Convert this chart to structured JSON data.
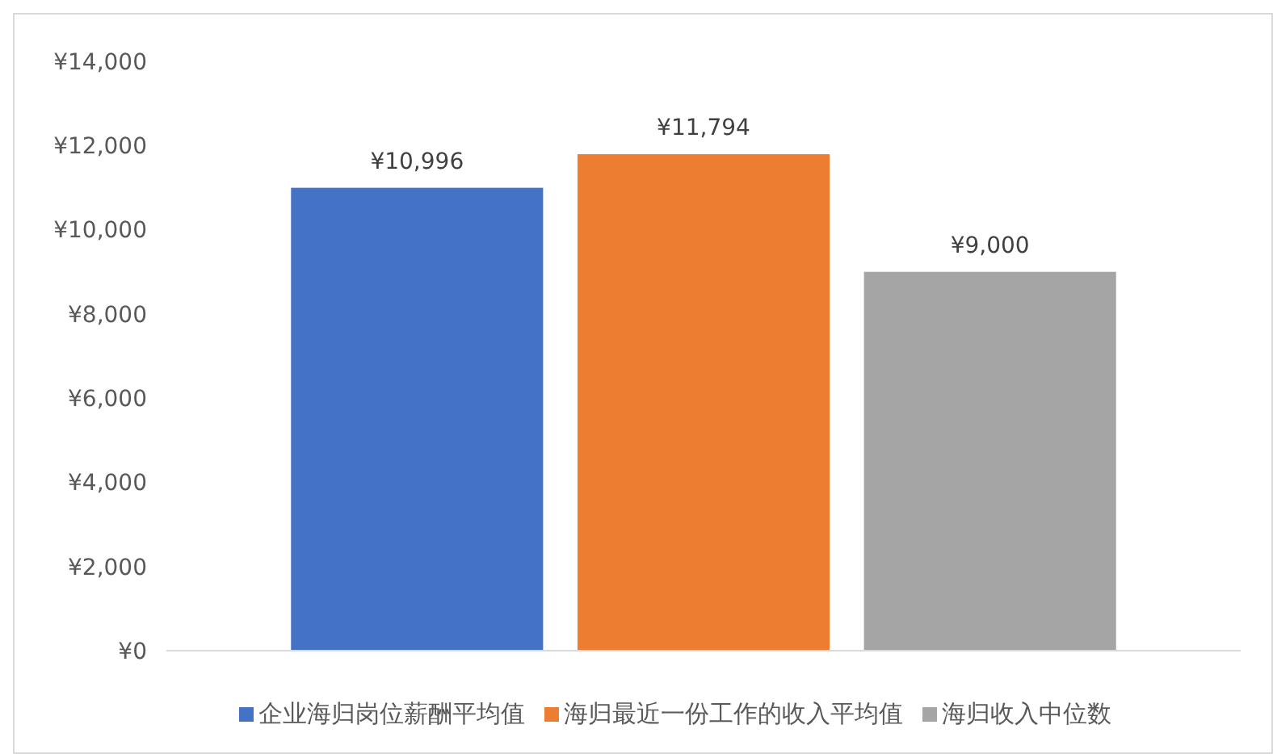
{
  "chart_data": {
    "type": "bar",
    "categories": [
      null
    ],
    "series": [
      {
        "name": "企业海归岗位薪酬平均值",
        "color": "#4472c4",
        "values": [
          10996
        ],
        "value_labels": [
          "¥10,996"
        ]
      },
      {
        "name": "海归最近一份工作的收入平均值",
        "color": "#ed7d31",
        "values": [
          11794
        ],
        "value_labels": [
          "¥11,794"
        ]
      },
      {
        "name": "海归收入中位数",
        "color": "#a5a5a5",
        "values": [
          9000
        ],
        "value_labels": [
          "¥9,000"
        ]
      }
    ],
    "ylim": [
      0,
      14000
    ],
    "yticks": [
      {
        "value": 0,
        "label": "¥0"
      },
      {
        "value": 2000,
        "label": "¥2,000"
      },
      {
        "value": 4000,
        "label": "¥4,000"
      },
      {
        "value": 6000,
        "label": "¥6,000"
      },
      {
        "value": 8000,
        "label": "¥8,000"
      },
      {
        "value": 10000,
        "label": "¥10,000"
      },
      {
        "value": 12000,
        "label": "¥12,000"
      },
      {
        "value": 14000,
        "label": "¥14,000"
      }
    ],
    "grid": false,
    "legend": "bottom"
  }
}
